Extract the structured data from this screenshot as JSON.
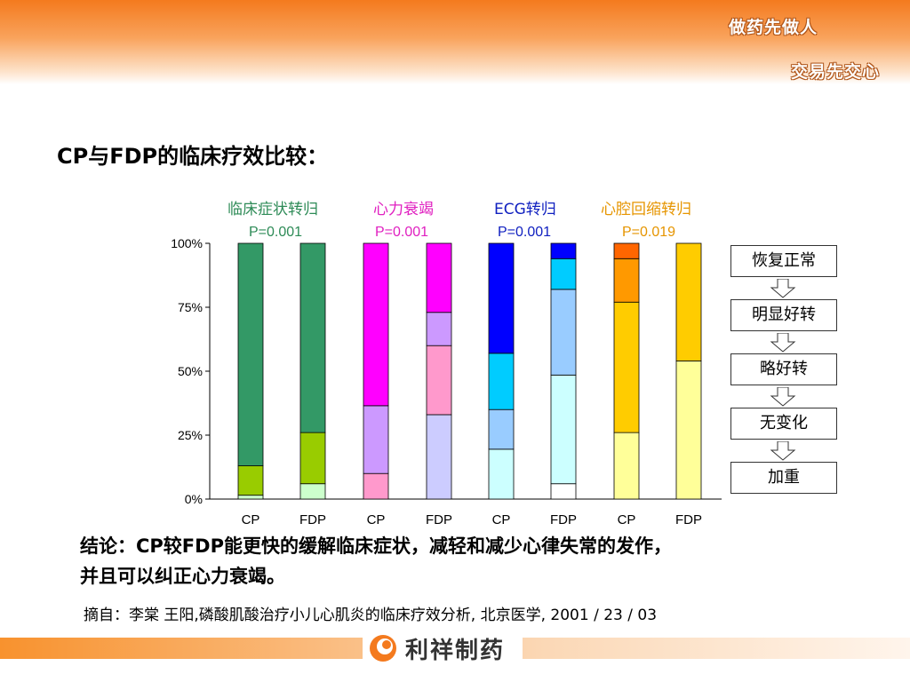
{
  "header": {
    "slogan_top": "做药先做人",
    "slogan_bottom": "交易先交心"
  },
  "title": "CP与FDP的临床疗效比较：",
  "groups": [
    {
      "label": "临床症状转归",
      "p": "P=0.001",
      "color": "#2e8b57"
    },
    {
      "label": "心力衰竭",
      "p": "P=0.001",
      "color": "#e020c0"
    },
    {
      "label": "ECG转归",
      "p": "P=0.001",
      "color": "#1020c0"
    },
    {
      "label": "心腔回缩转归",
      "p": "P=0.019",
      "color": "#e69500"
    }
  ],
  "chart_data": {
    "type": "bar",
    "stacked": true,
    "ylim": [
      0,
      100
    ],
    "yticks": [
      "0%",
      "25%",
      "50%",
      "75%",
      "100%"
    ],
    "categories": [
      "CP",
      "FDP",
      "CP",
      "FDP",
      "CP",
      "FDP",
      "CP",
      "FDP"
    ],
    "stack_order": [
      "加重",
      "无变化",
      "略好转",
      "明显好转",
      "恢复正常"
    ],
    "bars": [
      {
        "segments": [
          {
            "value": 1.5,
            "color": "#ccffcc"
          },
          {
            "value": 11.5,
            "color": "#99cc00"
          },
          {
            "value": 87,
            "color": "#339966"
          }
        ]
      },
      {
        "segments": [
          {
            "value": 6,
            "color": "#ccffcc"
          },
          {
            "value": 20,
            "color": "#99cc00"
          },
          {
            "value": 74,
            "color": "#339966"
          }
        ]
      },
      {
        "segments": [
          {
            "value": 10,
            "color": "#ff99cc"
          },
          {
            "value": 26.5,
            "color": "#cc99ff"
          },
          {
            "value": 63.5,
            "color": "#ff00ff"
          }
        ]
      },
      {
        "segments": [
          {
            "value": 33,
            "color": "#ccccff"
          },
          {
            "value": 27,
            "color": "#ff99cc"
          },
          {
            "value": 13,
            "color": "#cc99ff"
          },
          {
            "value": 27,
            "color": "#ff00ff"
          }
        ]
      },
      {
        "segments": [
          {
            "value": 19.5,
            "color": "#ccffff"
          },
          {
            "value": 15.5,
            "color": "#99ccff"
          },
          {
            "value": 22,
            "color": "#00ccff"
          },
          {
            "value": 43,
            "color": "#0000ff"
          }
        ]
      },
      {
        "segments": [
          {
            "value": 6,
            "color": "#ffffff"
          },
          {
            "value": 42.5,
            "color": "#ccffff"
          },
          {
            "value": 33.5,
            "color": "#99ccff"
          },
          {
            "value": 12,
            "color": "#00ccff"
          },
          {
            "value": 6,
            "color": "#0000ff"
          }
        ]
      },
      {
        "segments": [
          {
            "value": 26,
            "color": "#ffff99"
          },
          {
            "value": 51,
            "color": "#ffcc00"
          },
          {
            "value": 17,
            "color": "#ff9900"
          },
          {
            "value": 6,
            "color": "#ff6600"
          }
        ]
      },
      {
        "segments": [
          {
            "value": 54,
            "color": "#ffff99"
          },
          {
            "value": 46,
            "color": "#ffcc00"
          }
        ]
      }
    ]
  },
  "legend": [
    "恢复正常",
    "明显好转",
    "略好转",
    "无变化",
    "加重"
  ],
  "conclusion_line1": "结论：CP较FDP能更快的缓解临床症状，减轻和减少心律失常的发作，",
  "conclusion_line2": "并且可以纠正心力衰竭。",
  "citation": "摘自：李棠  王阳,磷酸肌酸治疗小儿心肌炎的临床疗效分析, 北京医学, 2001 / 23 / 03",
  "footer": {
    "logo_text": "利祥制药",
    "accent": "#f47a1e"
  }
}
